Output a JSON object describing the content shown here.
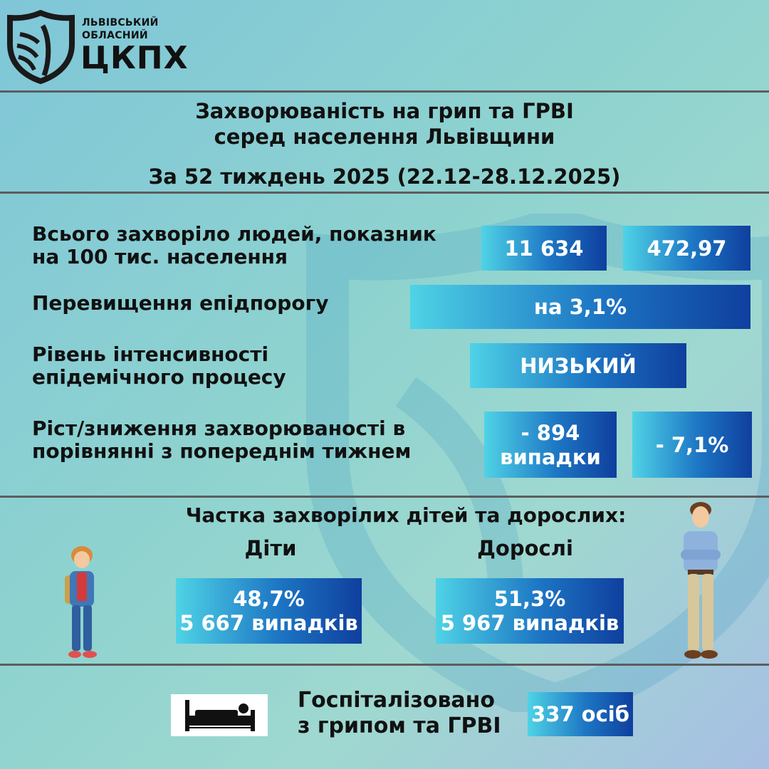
{
  "logo": {
    "line1": "ЛЬВІВСЬКИЙ",
    "line2": "ОБЛАСНИЙ",
    "name": "ЦКПХ",
    "icon": "shield-logo-icon"
  },
  "header": {
    "title_line1": "Захворюваність на грип та ГРВІ",
    "title_line2": "серед населення Львівщини",
    "period": "За 52 тиждень 2025 (22.12-28.12.2025)"
  },
  "stats": {
    "total": {
      "label_line1": "Всього захворіло людей, показник",
      "label_line2": "на 100 тис. населення",
      "count": "11 634",
      "rate": "472,97"
    },
    "threshold": {
      "label": "Перевищення епідпорогу",
      "value": "на 3,1%"
    },
    "intensity": {
      "label_line1": "Рівень інтенсивності",
      "label_line2": "епідемічного процесу",
      "value": "НИЗЬКИЙ"
    },
    "change": {
      "label_line1": "Ріст/зниження захворюваності   в",
      "label_line2": "порівнянні з попереднім тижнем",
      "cases_line1": "- 894",
      "cases_line2": "випадки",
      "percent": "- 7,1%"
    }
  },
  "share": {
    "title": "Частка захворілих дітей та дорослих:",
    "children": {
      "label": "Діти",
      "percent": "48,7%",
      "cases": "5 667 випадків"
    },
    "adults": {
      "label": "Дорослі",
      "percent": "51,3%",
      "cases": "5 967 випадків"
    }
  },
  "hospital": {
    "label_line1": "Госпіталізовано",
    "label_line2": "з грипом та ГРВІ",
    "value": "337 осіб",
    "icon": "hospital-bed-icon"
  },
  "colors": {
    "box_start": "#4fd3e6",
    "box_mid": "#1d76c4",
    "box_end": "#0f3f9e",
    "divider": "#5d5d5d"
  }
}
